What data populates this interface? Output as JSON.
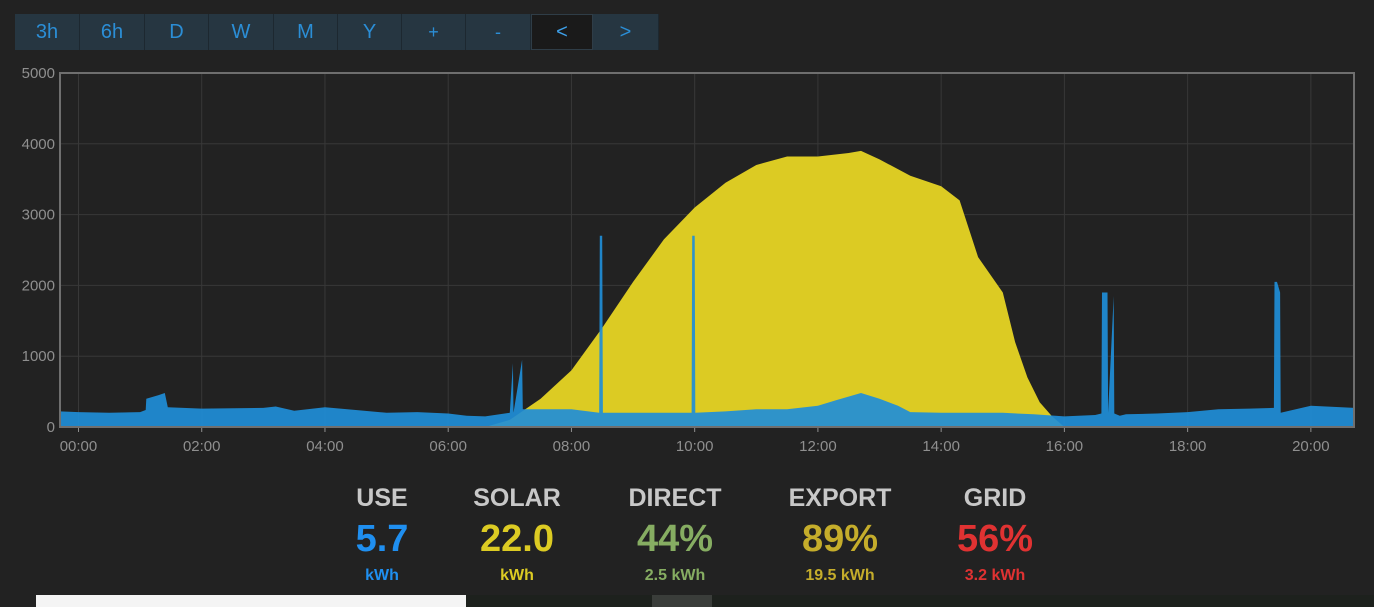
{
  "toolbar": {
    "buttons": [
      {
        "label": "3h",
        "active": false
      },
      {
        "label": "6h",
        "active": false
      },
      {
        "label": "D",
        "active": false
      },
      {
        "label": "W",
        "active": false
      },
      {
        "label": "M",
        "active": false
      },
      {
        "label": "Y",
        "active": false
      },
      {
        "label": "+",
        "active": false
      },
      {
        "label": "-",
        "active": false
      },
      {
        "label": "<",
        "active": true
      },
      {
        "label": ">",
        "active": false
      }
    ]
  },
  "chart_data": {
    "type": "area",
    "title": "",
    "xlabel": "",
    "ylabel": "",
    "ylim": [
      0,
      5000
    ],
    "xlim_hours": [
      -0.3,
      20.7
    ],
    "yticks": [
      0,
      1000,
      2000,
      3000,
      4000,
      5000
    ],
    "xticks": [
      "00:00",
      "02:00",
      "04:00",
      "06:00",
      "08:00",
      "10:00",
      "12:00",
      "14:00",
      "16:00",
      "18:00",
      "20:00"
    ],
    "grid": true,
    "legend": "none",
    "colors": {
      "solar": "#dccb23",
      "use": "#1f8ed8",
      "background": "#222222",
      "grid": "#383838",
      "border": "#6f6f6f",
      "tick": "#8f8f8f"
    },
    "series": [
      {
        "key": "solar",
        "x_hours": [
          6.6,
          7.0,
          7.5,
          8.0,
          8.5,
          9.0,
          9.5,
          10.0,
          10.5,
          11.0,
          11.5,
          12.0,
          12.5,
          12.7,
          13.0,
          13.5,
          14.0,
          14.3,
          14.6,
          15.0,
          15.2,
          15.4,
          15.6,
          15.8,
          16.0
        ],
        "values": [
          0,
          100,
          400,
          800,
          1400,
          2050,
          2650,
          3100,
          3450,
          3700,
          3820,
          3820,
          3870,
          3900,
          3780,
          3550,
          3400,
          3200,
          2400,
          1900,
          1200,
          700,
          350,
          150,
          0
        ]
      },
      {
        "key": "use",
        "x_hours": [
          -0.3,
          0.0,
          0.5,
          1.0,
          1.09,
          1.1,
          1.3,
          1.4,
          1.45,
          2.0,
          3.0,
          3.2,
          3.5,
          4.0,
          4.5,
          5.0,
          5.5,
          6.0,
          6.3,
          6.6,
          7.0,
          7.05,
          7.06,
          7.2,
          7.21,
          7.3,
          7.5,
          8.0,
          8.45,
          8.46,
          8.5,
          8.51,
          9.0,
          9.5,
          9.95,
          9.96,
          10.0,
          10.01,
          10.5,
          11.0,
          11.5,
          12.0,
          12.3,
          12.7,
          13.0,
          13.3,
          13.5,
          14.0,
          14.5,
          15.0,
          15.5,
          16.0,
          16.5,
          16.6,
          16.61,
          16.7,
          16.71,
          16.8,
          16.81,
          16.9,
          17.0,
          17.5,
          18.0,
          18.5,
          19.0,
          19.4,
          19.41,
          19.45,
          19.5,
          19.51,
          20.0,
          20.5,
          20.7
        ],
        "values": [
          220,
          210,
          200,
          210,
          240,
          400,
          450,
          480,
          280,
          260,
          270,
          290,
          230,
          280,
          240,
          200,
          210,
          190,
          160,
          150,
          200,
          900,
          200,
          950,
          250,
          250,
          250,
          250,
          200,
          2700,
          2700,
          200,
          200,
          200,
          200,
          2700,
          2700,
          200,
          220,
          250,
          250,
          300,
          380,
          480,
          400,
          300,
          210,
          200,
          200,
          200,
          180,
          150,
          170,
          190,
          1900,
          1900,
          200,
          1850,
          190,
          160,
          180,
          190,
          210,
          250,
          260,
          270,
          2050,
          2050,
          1900,
          200,
          300,
          280,
          270
        ]
      }
    ]
  },
  "stats": [
    {
      "label": "USE",
      "value": "5.7",
      "sub": "kWh",
      "color": "#1f8ff0"
    },
    {
      "label": "SOLAR",
      "value": "22.0",
      "sub": "kWh",
      "color": "#dccb23"
    },
    {
      "label": "DIRECT",
      "value": "44%",
      "sub": "2.5 kWh",
      "color": "#86ad62"
    },
    {
      "label": "EXPORT",
      "value": "89%",
      "sub": "19.5 kWh",
      "color": "#c5ad2b"
    },
    {
      "label": "GRID",
      "value": "56%",
      "sub": "3.2 kWh",
      "color": "#e03232"
    }
  ]
}
